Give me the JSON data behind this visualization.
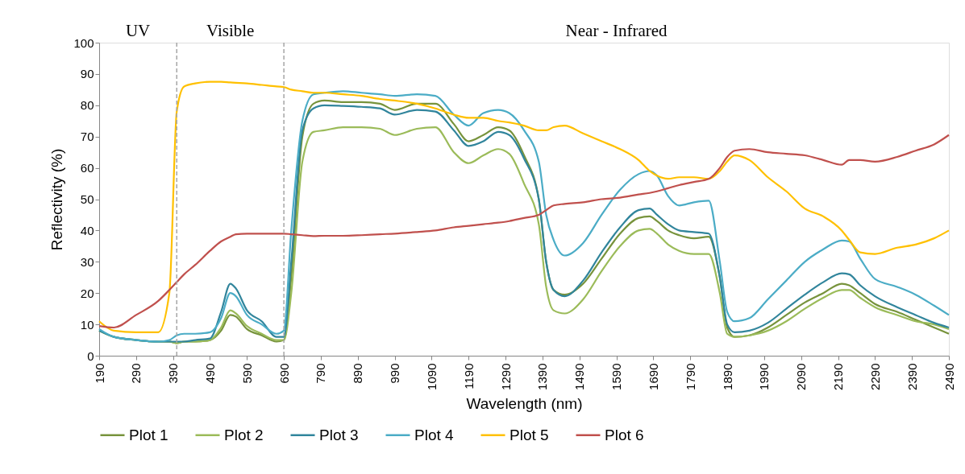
{
  "chart_data": {
    "type": "line",
    "xlabel": "Wavelength (nm)",
    "ylabel": "Reflectivity (%)",
    "x": [
      190,
      230,
      290,
      350,
      380,
      400,
      420,
      450,
      490,
      520,
      545,
      560,
      590,
      630,
      670,
      690,
      710,
      740,
      770,
      800,
      850,
      900,
      950,
      990,
      1050,
      1100,
      1150,
      1190,
      1230,
      1270,
      1300,
      1340,
      1380,
      1400,
      1420,
      1450,
      1500,
      1550,
      1600,
      1650,
      1680,
      1700,
      1730,
      1760,
      1800,
      1840,
      1870,
      1890,
      1910,
      1950,
      2000,
      2050,
      2100,
      2150,
      2200,
      2220,
      2250,
      2290,
      2350,
      2400,
      2450,
      2490
    ],
    "series": [
      {
        "name": "Plot 1",
        "color": "#77933c",
        "values": [
          8,
          6,
          5,
          4.5,
          4.5,
          4,
          4.5,
          4.5,
          5,
          8,
          13,
          12.5,
          8.5,
          6.5,
          4.5,
          5,
          25,
          70,
          80.5,
          81.5,
          81,
          81,
          80.5,
          78.5,
          80.5,
          80.5,
          74,
          68.5,
          70.5,
          73,
          72,
          64,
          50,
          30,
          21,
          19.5,
          23,
          31,
          39,
          44,
          44.5,
          43,
          40,
          38.5,
          37.5,
          38,
          25,
          9,
          6,
          6.5,
          9,
          13,
          17,
          20,
          23,
          22.5,
          20,
          16.5,
          14,
          11.5,
          9,
          7
        ]
      },
      {
        "name": "Plot 2",
        "color": "#9bbb59",
        "values": [
          8,
          6,
          5,
          4.5,
          4.5,
          4,
          4.5,
          4.5,
          5,
          9,
          14.5,
          13.5,
          9.5,
          7,
          5,
          5,
          20,
          62,
          71.5,
          72,
          73,
          73,
          72.5,
          70.5,
          72.5,
          73,
          65,
          61.5,
          64,
          66,
          64.5,
          55,
          42,
          22,
          14.5,
          13.5,
          18,
          27,
          35,
          40,
          40.5,
          39,
          35.5,
          33.5,
          32.5,
          32.5,
          20,
          7,
          6,
          6.5,
          8,
          11,
          15,
          18.5,
          21,
          21,
          18.5,
          15.5,
          13,
          11,
          10,
          8.5
        ]
      },
      {
        "name": "Plot 3",
        "color": "#31859c",
        "values": [
          8,
          6,
          5,
          4.5,
          4.5,
          4.5,
          4.5,
          5,
          5.5,
          14,
          23,
          21.5,
          14.5,
          11,
          6,
          6,
          30,
          72,
          79,
          80,
          79.8,
          79.5,
          79,
          77,
          78.5,
          78,
          72,
          67,
          68.5,
          71.5,
          70.5,
          63,
          50,
          30,
          21,
          19,
          24,
          33,
          41,
          46.5,
          47,
          45,
          42,
          40,
          39.5,
          39,
          25,
          10,
          7.5,
          8,
          10.5,
          15,
          19.5,
          23.5,
          26.3,
          26,
          22.5,
          19,
          15.5,
          13,
          10.5,
          9
        ]
      },
      {
        "name": "Plot 4",
        "color": "#4bacc6",
        "values": [
          8.5,
          6,
          5,
          4.5,
          5,
          6.5,
          7,
          7,
          7.5,
          12,
          20,
          19,
          13,
          10,
          7,
          8,
          40,
          75,
          83.5,
          84,
          84.5,
          84,
          83.5,
          83,
          83.5,
          83,
          77,
          73.5,
          77.5,
          78.5,
          77.5,
          72,
          62,
          45,
          37,
          32,
          36,
          45,
          53,
          58,
          59,
          57.5,
          51,
          48,
          49,
          49.5,
          30,
          14,
          11,
          12,
          18,
          24,
          30,
          34,
          36.8,
          36.5,
          31,
          24.5,
          22,
          19.5,
          16,
          13
        ]
      },
      {
        "name": "Plot 5",
        "color": "#ffc000",
        "values": [
          11,
          8,
          7.5,
          7.5,
          20,
          78,
          86,
          87,
          87.5,
          87.5,
          87.3,
          87.2,
          87,
          86.5,
          86,
          85.8,
          85,
          84.5,
          84,
          84,
          83.5,
          83,
          82,
          81.5,
          80.5,
          79,
          77,
          76,
          76,
          75,
          74.5,
          73.5,
          72,
          72,
          73,
          73.5,
          71,
          68.5,
          66,
          62.5,
          59,
          57.5,
          56.5,
          57,
          57,
          56.5,
          59,
          62,
          64,
          62.5,
          57,
          52.5,
          47,
          44.5,
          40,
          37,
          33,
          32.5,
          34.5,
          35.5,
          37.5,
          40
        ]
      },
      {
        "name": "Plot 6",
        "color": "#c0504d",
        "values": [
          9.5,
          9,
          13,
          17.5,
          21,
          23.5,
          26,
          29,
          33.5,
          36.5,
          38,
          38.8,
          39,
          39,
          39,
          39,
          38.8,
          38.5,
          38.2,
          38.3,
          38.3,
          38.5,
          38.8,
          39,
          39.5,
          40,
          41,
          41.5,
          42,
          42.5,
          43,
          44,
          45,
          46.5,
          48,
          48.5,
          49,
          50,
          50.5,
          51.5,
          52,
          52.5,
          53.5,
          54.5,
          55.5,
          56.5,
          60,
          63.5,
          65.5,
          66,
          65,
          64.5,
          64,
          62.5,
          61,
          62.5,
          62.5,
          62,
          63.5,
          65.5,
          67.5,
          70.5
        ]
      }
    ],
    "xlim": [
      190,
      2490
    ],
    "xticks": [
      190,
      290,
      390,
      490,
      590,
      690,
      790,
      890,
      990,
      1090,
      1190,
      1290,
      1390,
      1490,
      1590,
      1690,
      1790,
      1890,
      1990,
      2090,
      2190,
      2290,
      2390,
      2490
    ],
    "ylim": [
      0,
      100
    ],
    "yticks": [
      0,
      10,
      20,
      30,
      40,
      50,
      60,
      70,
      80,
      90,
      100
    ],
    "ref_lines": [
      {
        "axis": "x",
        "value": 400,
        "label": null,
        "color": "#a6a6a6",
        "line_style": "dashed"
      },
      {
        "axis": "x",
        "value": 690,
        "label": null,
        "color": "#a6a6a6",
        "line_style": "dashed"
      }
    ],
    "annotations": [
      "UV",
      "Visible",
      "Near - Infrared"
    ],
    "legend": "bottom",
    "grid": false,
    "marker": "none",
    "line_style": "solid"
  }
}
